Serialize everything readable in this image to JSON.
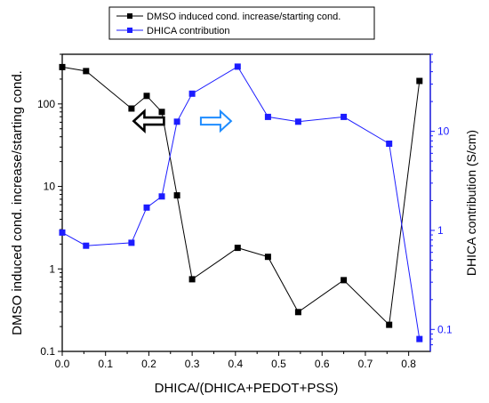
{
  "chart_data": {
    "type": "line",
    "xlabel": "DHICA/(DHICA+PEDOT+PSS)",
    "ylabel_left": "DMSO induced cond. increase/starting cond.",
    "ylabel_right": "DHICA contribution (S/cm)",
    "xlim": [
      0.0,
      0.85
    ],
    "ylim_left": [
      0.1,
      400
    ],
    "ylim_right": [
      0.06,
      60
    ],
    "y_scale_left": "log",
    "y_scale_right": "log",
    "x_ticks": [
      "0.0",
      "0.1",
      "0.2",
      "0.3",
      "0.4",
      "0.5",
      "0.6",
      "0.7",
      "0.8"
    ],
    "y_ticks_left": [
      "0.1",
      "1",
      "10",
      "100"
    ],
    "y_ticks_right": [
      "0.1",
      "1",
      "10"
    ],
    "legend_position": "top-center",
    "colors": {
      "dmso": "#000000",
      "dhica": "#1c1cff",
      "left_arrow": "#000000",
      "right_arrow": "#1e8cff"
    },
    "series": [
      {
        "name": "DMSO induced cond. increase/starting cond.",
        "axis": "left",
        "marker": "square",
        "x": [
          0.0,
          0.055,
          0.16,
          0.195,
          0.23,
          0.265,
          0.3,
          0.405,
          0.475,
          0.545,
          0.65,
          0.755,
          0.825
        ],
        "values": [
          280,
          250,
          88,
          125,
          80,
          7.8,
          0.75,
          1.8,
          1.4,
          0.3,
          0.73,
          0.21,
          190
        ]
      },
      {
        "name": "DHICA contribution",
        "axis": "right",
        "marker": "square",
        "x": [
          0.0,
          0.055,
          0.16,
          0.195,
          0.23,
          0.265,
          0.3,
          0.405,
          0.475,
          0.545,
          0.65,
          0.755,
          0.825
        ],
        "values": [
          0.95,
          0.7,
          0.75,
          1.7,
          2.2,
          12.5,
          24,
          45,
          14,
          12.5,
          14,
          7.5,
          0.08
        ]
      }
    ]
  }
}
